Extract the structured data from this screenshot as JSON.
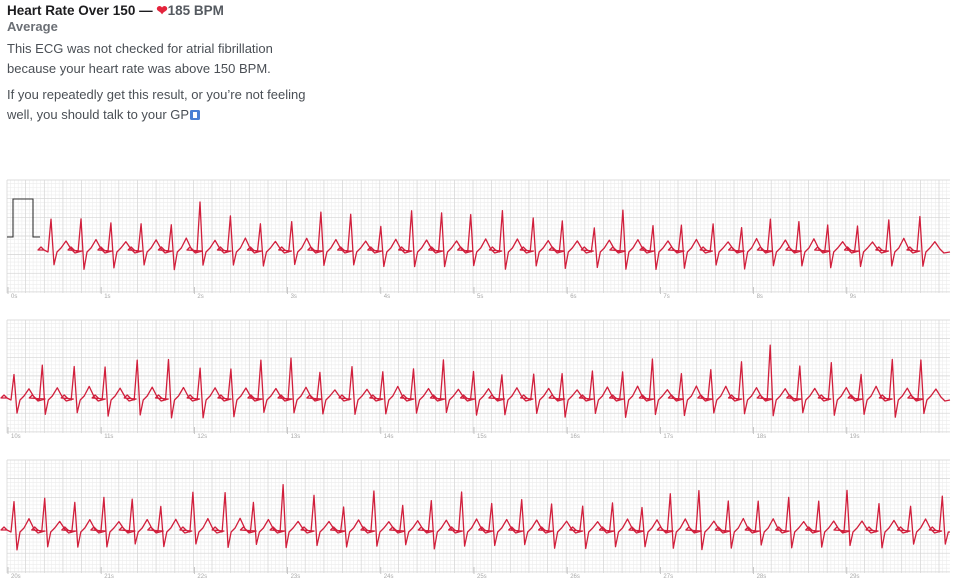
{
  "header": {
    "title_prefix": "Heart Rate Over 150 —",
    "heart_icon": "heart-icon",
    "bpm": "185 BPM",
    "subtitle": "Average",
    "para1": "This ECG was not checked for atrial fibrillation because your heart rate was above 150 BPM.",
    "para2": "If you repeatedly get this result, or you’re not feeling well, you should talk to your GP"
  },
  "colors": {
    "ecg_trace": "#d11f3c",
    "grid_minor": "#ececec",
    "grid_major": "#d6d6d6",
    "heart": "#e4243c"
  },
  "chart_data": {
    "type": "line",
    "title": "",
    "xlabel": "",
    "ylabel": "",
    "heart_rate_bpm": 185,
    "strips": [
      {
        "seconds": [
          "0s",
          "1s",
          "2s",
          "3s",
          "4s",
          "5s",
          "6s",
          "7s",
          "8s",
          "9s"
        ]
      },
      {
        "seconds": [
          "10s",
          "11s",
          "12s",
          "13s",
          "14s",
          "15s",
          "16s",
          "17s",
          "18s",
          "19s"
        ]
      },
      {
        "seconds": [
          "20s",
          "21s",
          "22s",
          "23s",
          "24s",
          "25s",
          "26s",
          "27s",
          "28s",
          "29s"
        ]
      }
    ],
    "calibration_pulse": "1 mV",
    "grid": true
  }
}
